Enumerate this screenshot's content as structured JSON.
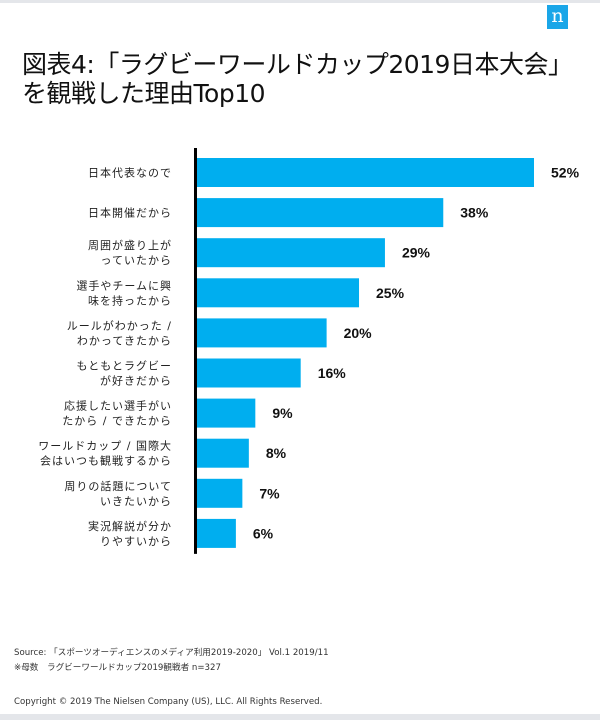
{
  "logo": {
    "text": "n",
    "color": "#1aa6e8"
  },
  "title": {
    "line1": "図表4:「ラグビーワールドカップ2019日本大会」",
    "line2": "を観戦した理由Top10"
  },
  "chart_data": {
    "type": "bar",
    "orientation": "horizontal",
    "title": "図表4:「ラグビーワールドカップ2019日本大会」を観戦した理由Top10",
    "xlabel": "",
    "ylabel": "",
    "xlim": [
      0,
      55
    ],
    "grid": false,
    "bar_color": "#00aeef",
    "categories": [
      [
        "日本代表なので"
      ],
      [
        "日本開催だから"
      ],
      [
        "周囲が盛り上が",
        "っていたから"
      ],
      [
        "選手やチームに興",
        "味を持ったから"
      ],
      [
        "ルールがわかった /",
        "わかってきたから"
      ],
      [
        "もともとラグビー",
        "が好きだから"
      ],
      [
        "応援したい選手がい",
        "たから / できたから"
      ],
      [
        "ワールドカップ / 国際大",
        "会はいつも観戦するから"
      ],
      [
        "周りの話題について",
        "いきたいから"
      ],
      [
        "実況解説が分か",
        "りやすいから"
      ]
    ],
    "values": [
      52,
      38,
      29,
      25,
      20,
      16,
      9,
      8,
      7,
      6
    ],
    "value_labels": [
      "52%",
      "38%",
      "29%",
      "25%",
      "20%",
      "16%",
      "9%",
      "8%",
      "7%",
      "6%"
    ],
    "unit": "%"
  },
  "footer": {
    "source": "Source: 「スポーツオーディエンスのメディア利用2019-2020」 Vol.1 2019/11",
    "note": "※母数　ラグビーワールドカップ2019観戦者 n=327",
    "copyright": "Copyright © 2019 The Nielsen Company (US), LLC. All Rights Reserved."
  }
}
